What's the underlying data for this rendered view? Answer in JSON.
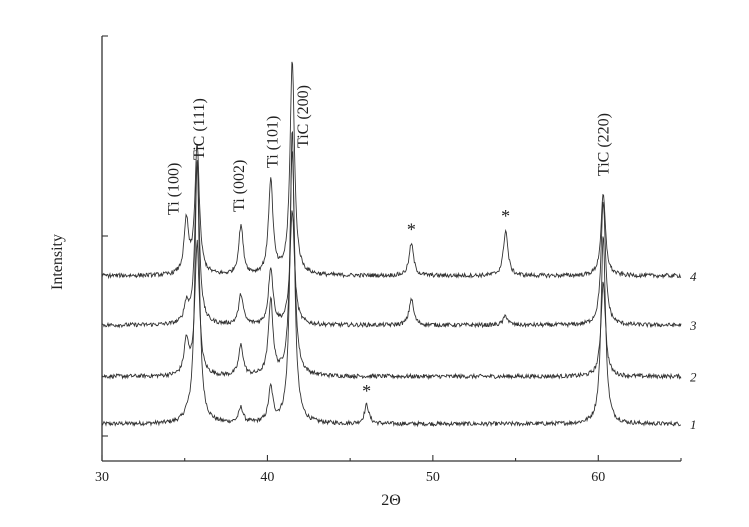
{
  "chart_data": {
    "type": "line",
    "title": "",
    "xlabel": "2Θ",
    "ylabel": "Intensity",
    "xlim": [
      30,
      65
    ],
    "x_ticks": [
      30,
      40,
      50,
      60
    ],
    "x_tick_labels": [
      "30",
      "40",
      "50",
      "60"
    ],
    "y_ticks_shown": 3,
    "y_tick_labels_shown": false,
    "grid": false,
    "legend": "none",
    "peak_labels": [
      {
        "text": "Ti (100)",
        "x": 35.0
      },
      {
        "text": "TiC (111)",
        "x": 35.8
      },
      {
        "text": "Ti (002)",
        "x": 38.4
      },
      {
        "text": "Ti (101)",
        "x": 40.2
      },
      {
        "text": "TiC (200)",
        "x": 41.5
      },
      {
        "text": "TiC (220)",
        "x": 60.2
      }
    ],
    "star_marks": [
      {
        "text": "*",
        "x": 46.0,
        "series": "1"
      },
      {
        "text": "*",
        "x": 48.7,
        "series": "4"
      },
      {
        "text": "*",
        "x": 54.4,
        "series": "4"
      }
    ],
    "series": [
      {
        "name": "1",
        "baseline": 0.0,
        "peaks": [
          {
            "x": 35.1,
            "height": 0.02
          },
          {
            "x": 35.75,
            "height": 1.4
          },
          {
            "x": 38.4,
            "height": 0.08
          },
          {
            "x": 40.2,
            "height": 0.18
          },
          {
            "x": 41.5,
            "height": 1.55
          },
          {
            "x": 46.0,
            "height": 0.1
          },
          {
            "x": 60.3,
            "height": 1.0
          }
        ]
      },
      {
        "name": "2",
        "baseline": 0.25,
        "peaks": [
          {
            "x": 35.1,
            "height": 0.18
          },
          {
            "x": 35.75,
            "height": 0.7
          },
          {
            "x": 38.4,
            "height": 0.16
          },
          {
            "x": 40.2,
            "height": 0.4
          },
          {
            "x": 41.5,
            "height": 1.2
          },
          {
            "x": 60.3,
            "height": 0.5
          }
        ]
      },
      {
        "name": "3",
        "baseline": 0.52,
        "peaks": [
          {
            "x": 35.1,
            "height": 0.1
          },
          {
            "x": 35.75,
            "height": 0.85
          },
          {
            "x": 38.4,
            "height": 0.16
          },
          {
            "x": 40.2,
            "height": 0.3
          },
          {
            "x": 41.5,
            "height": 0.6
          },
          {
            "x": 48.7,
            "height": 0.14
          },
          {
            "x": 54.4,
            "height": 0.05
          },
          {
            "x": 60.3,
            "height": 0.65
          }
        ]
      },
      {
        "name": "4",
        "baseline": 0.78,
        "peaks": [
          {
            "x": 35.1,
            "height": 0.28
          },
          {
            "x": 35.75,
            "height": 0.68
          },
          {
            "x": 38.4,
            "height": 0.26
          },
          {
            "x": 40.2,
            "height": 0.5
          },
          {
            "x": 41.5,
            "height": 1.13
          },
          {
            "x": 48.7,
            "height": 0.17
          },
          {
            "x": 54.4,
            "height": 0.24
          },
          {
            "x": 60.3,
            "height": 0.43
          }
        ]
      }
    ]
  }
}
